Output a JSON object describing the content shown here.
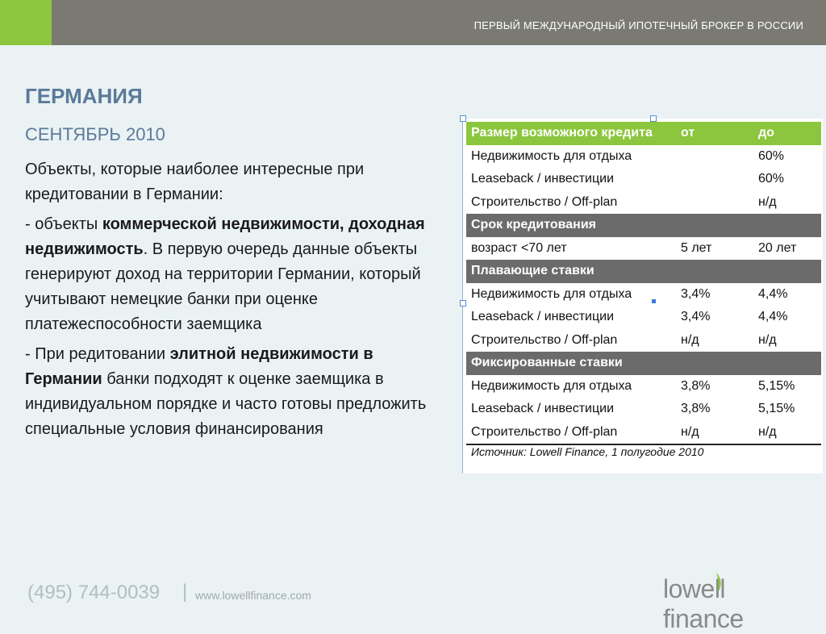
{
  "header": {
    "tagline": "ПЕРВЫЙ МЕЖДУНАРОДНЫЙ ИПОТЕЧНЫЙ БРОКЕР В РОССИИ",
    "accent_color": "#8cc63f",
    "bar_color": "#7a7a72"
  },
  "slide": {
    "title": "ГЕРМАНИЯ",
    "subtitle": "СЕНТЯБРЬ 2010",
    "intro": "Объекты, которые наиболее  интересные при кредитовании в Германии:",
    "p1": {
      "prefix": "- объекты ",
      "bold": "коммерческой недвижимости, доходная недвижимость",
      "rest": ". В первую очередь данные объекты генерируют доход на территории Германии, который учитывают немецкие банки при оценке платежеспособности заемщика"
    },
    "p2": {
      "prefix": "- При редитовании ",
      "bold": "элитной недвижимости в Германии",
      "rest": " банки подходят к оценке заемщика в индивидуальном порядке и часто готовы предложить специальные условия финансирования"
    }
  },
  "table": {
    "rows": [
      {
        "type": "hdr-green",
        "c1": "Размер возможного кредита",
        "c2": "от",
        "c3": "до"
      },
      {
        "type": "data",
        "c1": "Недвижимость для отдыха",
        "c2": "",
        "c3": "60%"
      },
      {
        "type": "data",
        "c1": "Leaseback / инвестиции",
        "c2": "",
        "c3": "60%"
      },
      {
        "type": "data",
        "c1": "Строительство / Off-plan",
        "c2": "",
        "c3": "н/д"
      },
      {
        "type": "hdr-gray",
        "c1": "Срок кредитования",
        "c2": "",
        "c3": ""
      },
      {
        "type": "data",
        "c1": "возраст <70 лет",
        "c2": "5 лет",
        "c3": "20 лет"
      },
      {
        "type": "hdr-gray",
        "c1": "Плавающие ставки",
        "c2": "",
        "c3": ""
      },
      {
        "type": "data",
        "c1": "Недвижимость для отдыха",
        "c2": "3,4%",
        "c3": "4,4%"
      },
      {
        "type": "data",
        "c1": "Leaseback / инвестиции",
        "c2": "3,4%",
        "c3": "4,4%"
      },
      {
        "type": "data",
        "c1": "Строительство / Off-plan",
        "c2": "н/д",
        "c3": "н/д"
      },
      {
        "type": "hdr-gray",
        "c1": "Фиксированные ставки",
        "c2": "",
        "c3": ""
      },
      {
        "type": "data",
        "c1": "Недвижимость для отдыха",
        "c2": "3,8%",
        "c3": "5,15%"
      },
      {
        "type": "data",
        "c1": "Leaseback / инвестиции",
        "c2": "3,8%",
        "c3": "5,15%"
      },
      {
        "type": "data last",
        "c1": "Строительство / Off-plan",
        "c2": "н/д",
        "c3": "н/д"
      }
    ],
    "source": "Источник: Lowell Finance, 1 полугодие 2010"
  },
  "footer": {
    "phone": "(495) 744-0039",
    "separator": "|",
    "url": "www.lowellfinance.com",
    "logo_text": "lowell finance"
  }
}
